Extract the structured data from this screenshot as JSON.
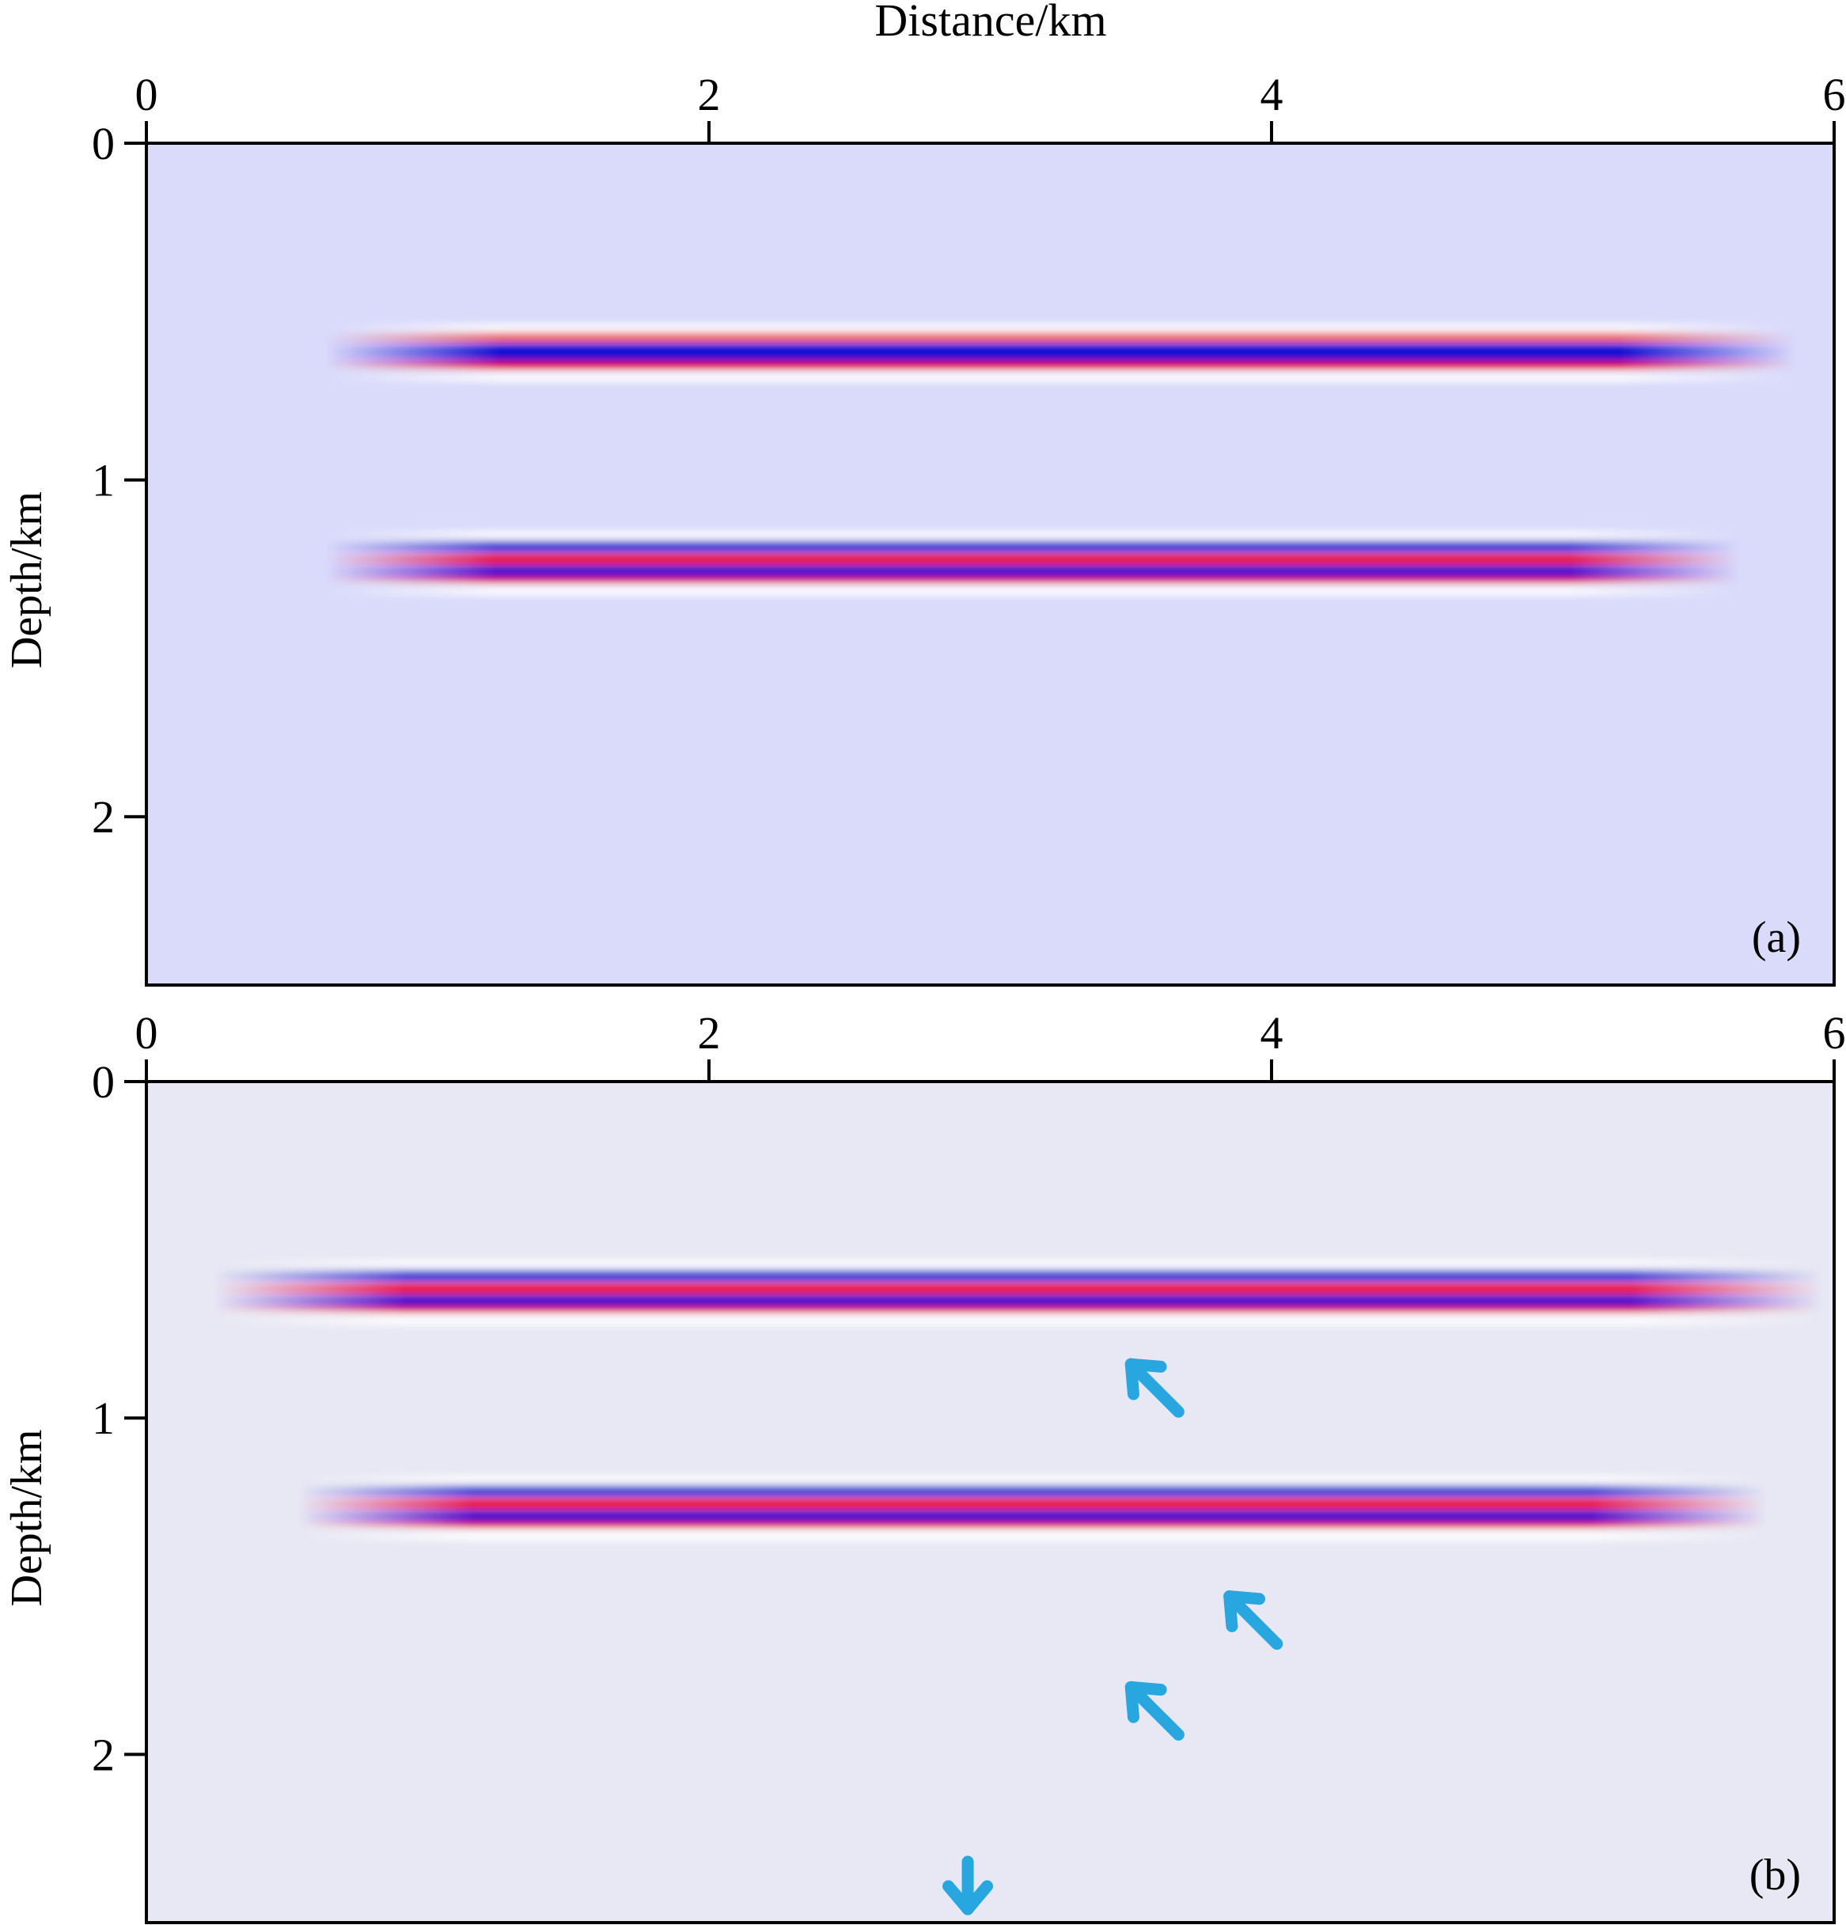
{
  "figure": {
    "xlabel": "Distance/km"
  },
  "colors": {
    "positive": "#ee0000",
    "negative": "#0a0ad2",
    "arrow": "#27a6df",
    "frame": "#000000"
  },
  "chart_data": [
    {
      "type": "heatmap",
      "panel_label": "(a)",
      "xlabel": "Distance/km",
      "ylabel": "Depth/km",
      "xlim": [
        0,
        6
      ],
      "ylim": [
        0,
        2.5
      ],
      "y_inverted": true,
      "xticks": [
        0,
        2,
        4,
        6
      ],
      "yticks": [
        0,
        1,
        2
      ],
      "background_color": "#dadafb",
      "reflectors": [
        {
          "depth_km": 0.62,
          "x_start_km": 1.0,
          "x_end_km": 5.5,
          "polarity": "red-blue-red"
        },
        {
          "depth_km": 1.25,
          "x_start_km": 1.0,
          "x_end_km": 5.3,
          "polarity": "blue-red-blue"
        }
      ],
      "arrows": []
    },
    {
      "type": "heatmap",
      "panel_label": "(b)",
      "xlabel": "",
      "ylabel": "Depth/km",
      "xlim": [
        0,
        6
      ],
      "ylim": [
        0,
        2.5
      ],
      "y_inverted": true,
      "xticks": [
        0,
        2,
        4,
        6
      ],
      "yticks": [
        0,
        1,
        2
      ],
      "background_color": "#e8e8f5",
      "reflectors": [
        {
          "depth_km": 0.63,
          "x_start_km": 0.6,
          "x_end_km": 5.6,
          "polarity": "blue-red-blue"
        },
        {
          "depth_km": 1.27,
          "x_start_km": 0.9,
          "x_end_km": 5.4,
          "polarity": "blue-red-blue"
        }
      ],
      "arrows": [
        {
          "tip_x_km": 3.5,
          "tip_y_km": 0.84,
          "direction": "up-left"
        },
        {
          "tip_x_km": 3.85,
          "tip_y_km": 1.53,
          "direction": "up-left"
        },
        {
          "tip_x_km": 3.5,
          "tip_y_km": 1.8,
          "direction": "up-left"
        },
        {
          "tip_x_km": 2.92,
          "tip_y_km": 2.46,
          "direction": "down"
        }
      ]
    }
  ]
}
